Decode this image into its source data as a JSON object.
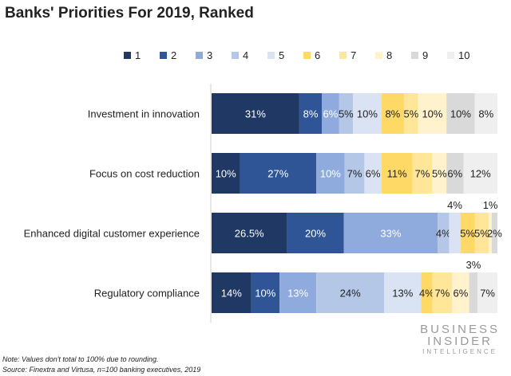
{
  "chart_data": {
    "type": "bar",
    "orientation": "horizontal",
    "stacked": true,
    "title": "Banks' Priorities For 2019, Ranked",
    "categories": [
      "Investment in innovation",
      "Focus on cost reduction",
      "Enhanced digital customer experience",
      "Regulatory compliance"
    ],
    "series": [
      {
        "name": "1",
        "color": "#1f3864",
        "values": [
          31,
          10,
          26.5,
          14
        ]
      },
      {
        "name": "2",
        "color": "#2f5597",
        "values": [
          8,
          27,
          20,
          10
        ]
      },
      {
        "name": "3",
        "color": "#8faadc",
        "values": [
          6,
          10,
          33,
          13
        ]
      },
      {
        "name": "4",
        "color": "#b4c7e7",
        "values": [
          5,
          7,
          4,
          24
        ]
      },
      {
        "name": "5",
        "color": "#dae3f3",
        "values": [
          10,
          6,
          4,
          13
        ]
      },
      {
        "name": "6",
        "color": "#ffd966",
        "values": [
          8,
          11,
          5,
          4
        ]
      },
      {
        "name": "7",
        "color": "#ffe699",
        "values": [
          5,
          7,
          5,
          7
        ]
      },
      {
        "name": "8",
        "color": "#fff2cc",
        "values": [
          10,
          5,
          1,
          6
        ]
      },
      {
        "name": "9",
        "color": "#d9d9d9",
        "values": [
          10,
          6,
          2,
          3
        ]
      },
      {
        "name": "10",
        "color": "#efefef",
        "values": [
          8,
          12,
          0,
          7
        ]
      }
    ],
    "labels": [
      [
        "31%",
        "8%",
        "6%",
        "5%",
        "10%",
        "8%",
        "5%",
        "10%",
        "10%",
        "8%"
      ],
      [
        "10%",
        "27%",
        "10%",
        "7%",
        "6%",
        "11%",
        "7%",
        "5%",
        "6%",
        "12%"
      ],
      [
        "26.5%",
        "20%",
        "33%",
        "4%",
        "4%",
        "5%",
        "5%",
        "1%",
        "2%",
        ""
      ],
      [
        "14%",
        "10%",
        "13%",
        "24%",
        "13%",
        "4%",
        "7%",
        "6%",
        "3%",
        "7%"
      ]
    ],
    "legend": "top",
    "grid": false
  },
  "notes": {
    "note": "Note: Values don't total to 100% due to rounding.",
    "source": "Source: Finextra and Virtusa, n=100 banking executives, 2019"
  },
  "logo": {
    "line1": "BUSINESS",
    "line2": "INSIDER",
    "line3": "INTELLIGENCE"
  }
}
